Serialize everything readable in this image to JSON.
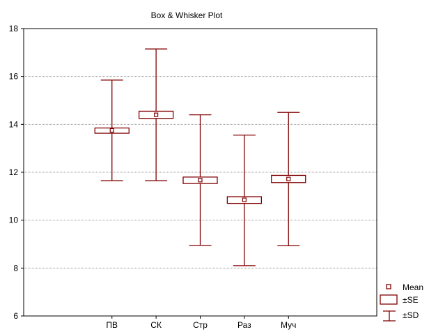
{
  "chart_data": {
    "type": "box",
    "title": "Box & Whisker Plot",
    "header_text": "",
    "categories": [
      "ПВ",
      "СК",
      "Стр",
      "Раз",
      "Муч"
    ],
    "series": [
      {
        "category": "ПВ",
        "mean": 13.75,
        "se_low": 13.63,
        "se_high": 13.85,
        "sd_low": 11.65,
        "sd_high": 15.85
      },
      {
        "category": "СК",
        "mean": 14.4,
        "se_low": 14.25,
        "se_high": 14.55,
        "sd_low": 11.65,
        "sd_high": 17.15
      },
      {
        "category": "Стр",
        "mean": 11.67,
        "se_low": 11.53,
        "se_high": 11.8,
        "sd_low": 8.95,
        "sd_high": 14.4
      },
      {
        "category": "Раз",
        "mean": 10.85,
        "se_low": 10.7,
        "se_high": 10.98,
        "sd_low": 8.1,
        "sd_high": 13.55
      },
      {
        "category": "Муч",
        "mean": 11.72,
        "se_low": 11.57,
        "se_high": 11.87,
        "sd_low": 8.93,
        "sd_high": 14.5
      }
    ],
    "y_ticks": [
      6,
      8,
      10,
      12,
      14,
      16,
      18
    ],
    "ylim": [
      6,
      18
    ],
    "grid": true,
    "legend_position": "bottom-right",
    "legend": {
      "mean": "Mean",
      "se": "±SE",
      "sd": "±SD"
    },
    "colors": {
      "mark": "#800000",
      "grid": "#9a9a9a",
      "axis": "#000000"
    }
  }
}
